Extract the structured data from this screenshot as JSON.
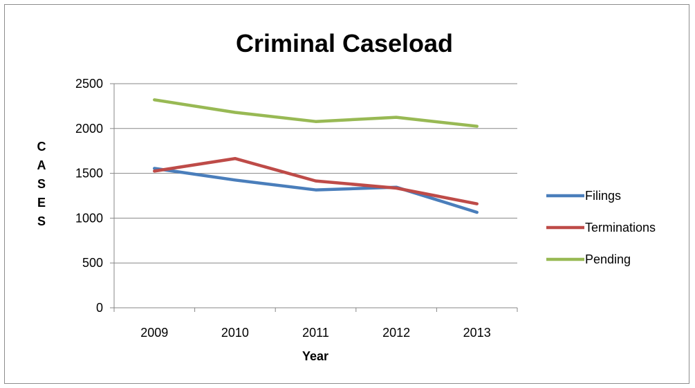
{
  "chart_data": {
    "type": "line",
    "title": "Criminal Caseload",
    "xlabel": "Year",
    "ylabel": "CASES",
    "categories": [
      "2009",
      "2010",
      "2011",
      "2012",
      "2013"
    ],
    "ylim": [
      0,
      2500
    ],
    "yticks": [
      "0",
      "500",
      "1000",
      "1500",
      "2000",
      "2500"
    ],
    "grid": true,
    "legend_position": "right",
    "series": [
      {
        "name": "Filings",
        "color": "#4a7ebb",
        "values": [
          1555,
          1425,
          1315,
          1345,
          1065
        ]
      },
      {
        "name": "Terminations",
        "color": "#be4b48",
        "values": [
          1525,
          1665,
          1415,
          1335,
          1160
        ]
      },
      {
        "name": "Pending",
        "color": "#98b954",
        "values": [
          2320,
          2180,
          2078,
          2125,
          2025
        ]
      }
    ]
  }
}
